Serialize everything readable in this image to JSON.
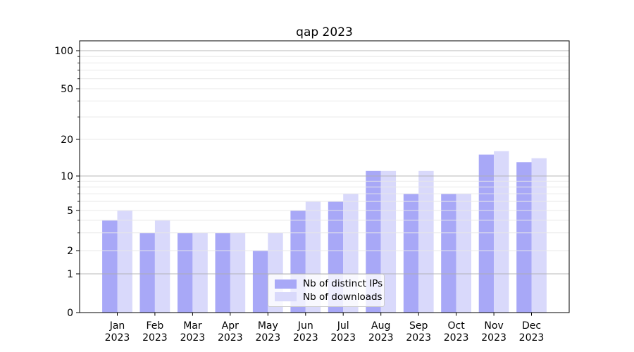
{
  "chart_data": {
    "type": "bar",
    "title": "qap 2023",
    "categories": [
      "Jan",
      "Feb",
      "Mar",
      "Apr",
      "May",
      "Jun",
      "Jul",
      "Aug",
      "Sep",
      "Oct",
      "Nov",
      "Dec"
    ],
    "category_year": "2023",
    "series": [
      {
        "name": "Nb of distinct IPs",
        "color": "#a8a8f7",
        "values": [
          4,
          3,
          3,
          3,
          2,
          5,
          6,
          11,
          7,
          7,
          15,
          13
        ]
      },
      {
        "name": "Nb of downloads",
        "color": "#d9d9fb",
        "values": [
          5,
          4,
          3,
          3,
          3,
          6,
          7,
          11,
          11,
          7,
          16,
          14
        ]
      }
    ],
    "y_axis": {
      "scale": "symlog",
      "tick_labels": [
        "0",
        "1",
        "2",
        "5",
        "10",
        "20",
        "50",
        "100"
      ],
      "ticks": [
        0,
        1,
        2,
        5,
        10,
        20,
        50,
        100
      ],
      "minor_ticks": [
        3,
        4,
        6,
        7,
        8,
        9,
        30,
        40,
        60,
        70,
        80,
        90
      ],
      "major_grid_ticks": [
        1,
        10,
        100
      ]
    },
    "legend_position": "lower center",
    "grid": true,
    "colors": {
      "background": "#ffffff",
      "axis": "#000000",
      "text": "#000000",
      "grid_major": "#adadad",
      "grid_minor": "#e8e8e8"
    }
  }
}
